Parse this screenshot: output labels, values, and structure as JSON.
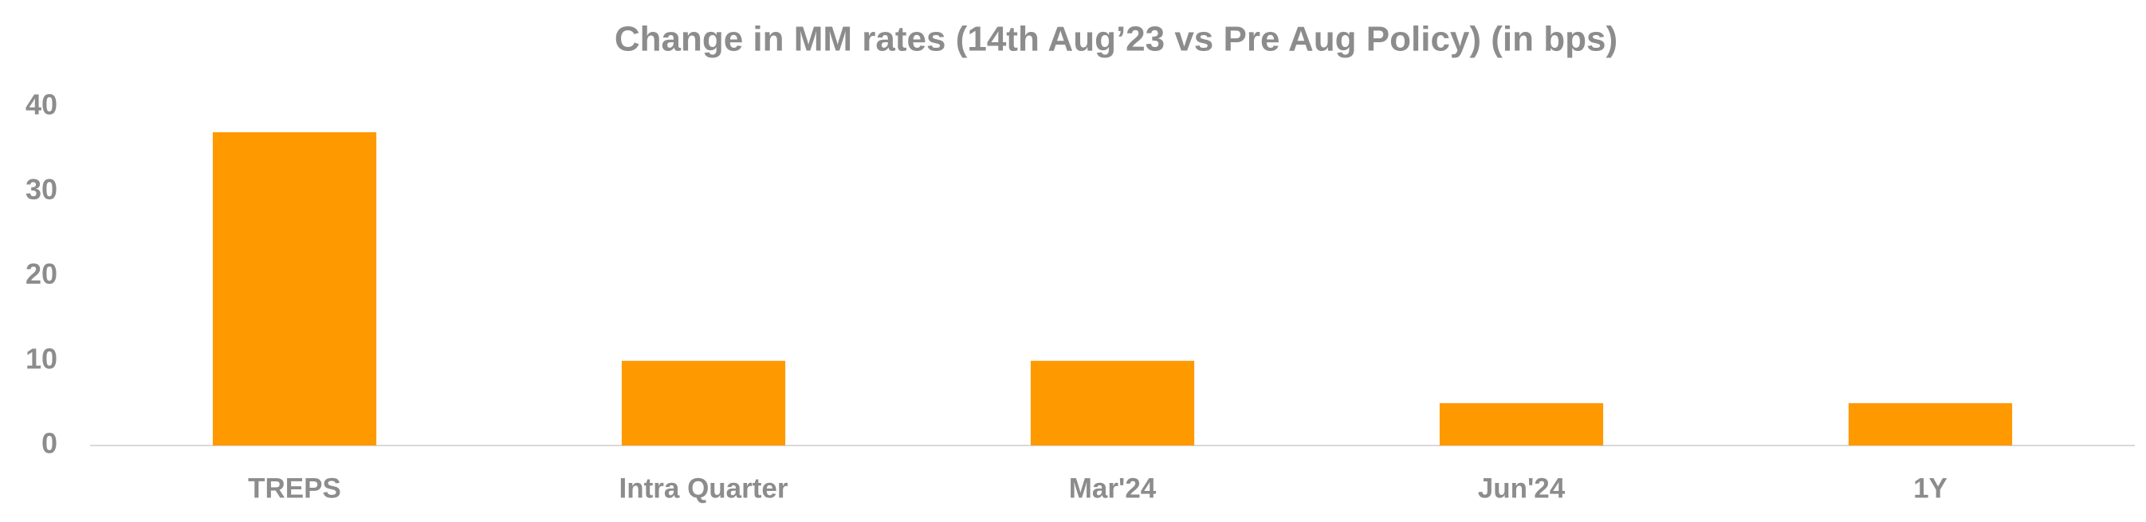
{
  "chart_data": {
    "type": "bar",
    "title": "Change in MM rates (14th Aug’23 vs Pre Aug Policy) (in bps)",
    "categories": [
      "TREPS",
      "Intra Quarter",
      "Mar'24",
      "Jun'24",
      "1Y"
    ],
    "values": [
      37,
      10,
      10,
      5,
      5
    ],
    "color": "#ff9900",
    "ylim": [
      0,
      40
    ],
    "yticks": [
      0,
      10,
      20,
      30,
      40
    ],
    "grid": false
  }
}
